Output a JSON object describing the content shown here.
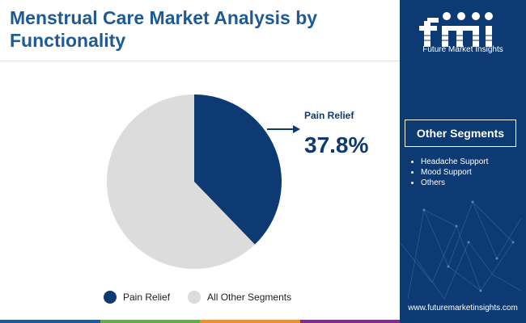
{
  "title": "Menstrual Care Market Analysis by Functionality",
  "brand": {
    "logo_letters": "fmi",
    "name": "Future Market Insights",
    "url": "www.futuremarketinsights.com",
    "panel_color": "#0d3a73"
  },
  "other_segments": {
    "title": "Other Segments",
    "items": [
      "Headache Support",
      "Mood Support",
      "Others"
    ]
  },
  "callout": {
    "label": "Pain Relief",
    "value": "37.8%"
  },
  "chart_data": {
    "type": "pie",
    "slices": [
      {
        "label": "Pain Relief",
        "value": 37.8,
        "color": "#0d3a73"
      },
      {
        "label": "All Other Segments",
        "value": 62.2,
        "color": "#dcdcdc"
      }
    ],
    "legend_position": "bottom"
  },
  "bottom_bar_colors": [
    "#1d5a96",
    "#6aa84f",
    "#e69138",
    "#7b2e8c"
  ]
}
